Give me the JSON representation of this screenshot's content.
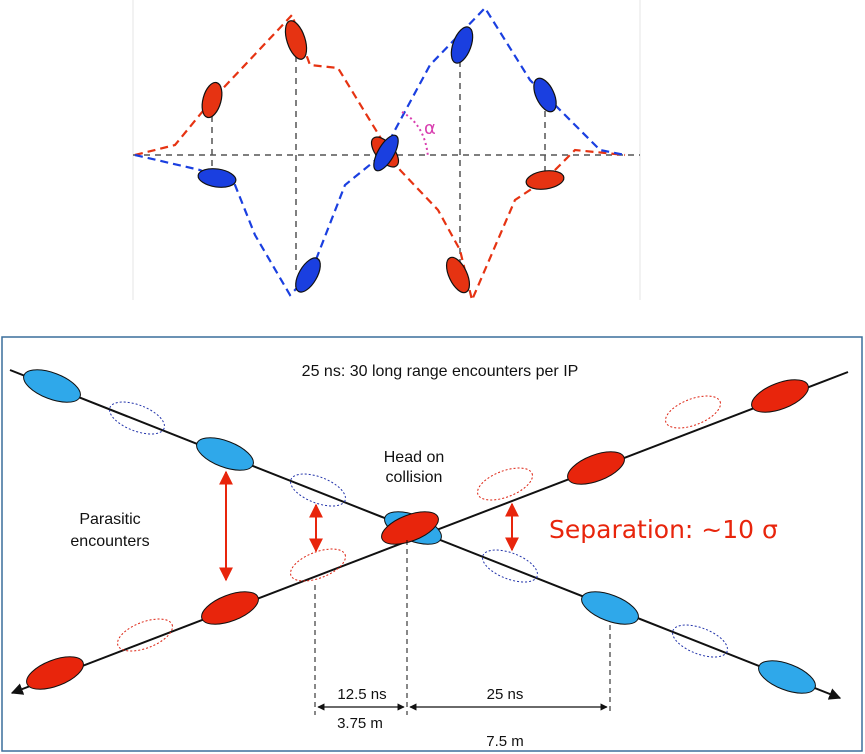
{
  "top": {
    "angle_label": "α",
    "colors": {
      "red": "#e63312",
      "blue": "#1a3fe0",
      "guide": "#555555",
      "angle": "#d93fb0"
    }
  },
  "bottom": {
    "title": "25 ns: 30 long range encounters per IP",
    "head_on": {
      "line1": "Head on",
      "line2": "collision"
    },
    "parasitic": {
      "line1": "Parasitic",
      "line2": "encounters"
    },
    "separation": "Separation: ~10 σ",
    "dim_12_5_ns": "12.5 ns",
    "dim_3_75_m": "3.75 m",
    "dim_25_ns": "25 ns",
    "dim_7_5_m": "7.5 m",
    "colors": {
      "red": "#e8250c",
      "blue": "#2fa8ea",
      "frame": "#3a6e9c",
      "separation": "#e8250c"
    }
  }
}
